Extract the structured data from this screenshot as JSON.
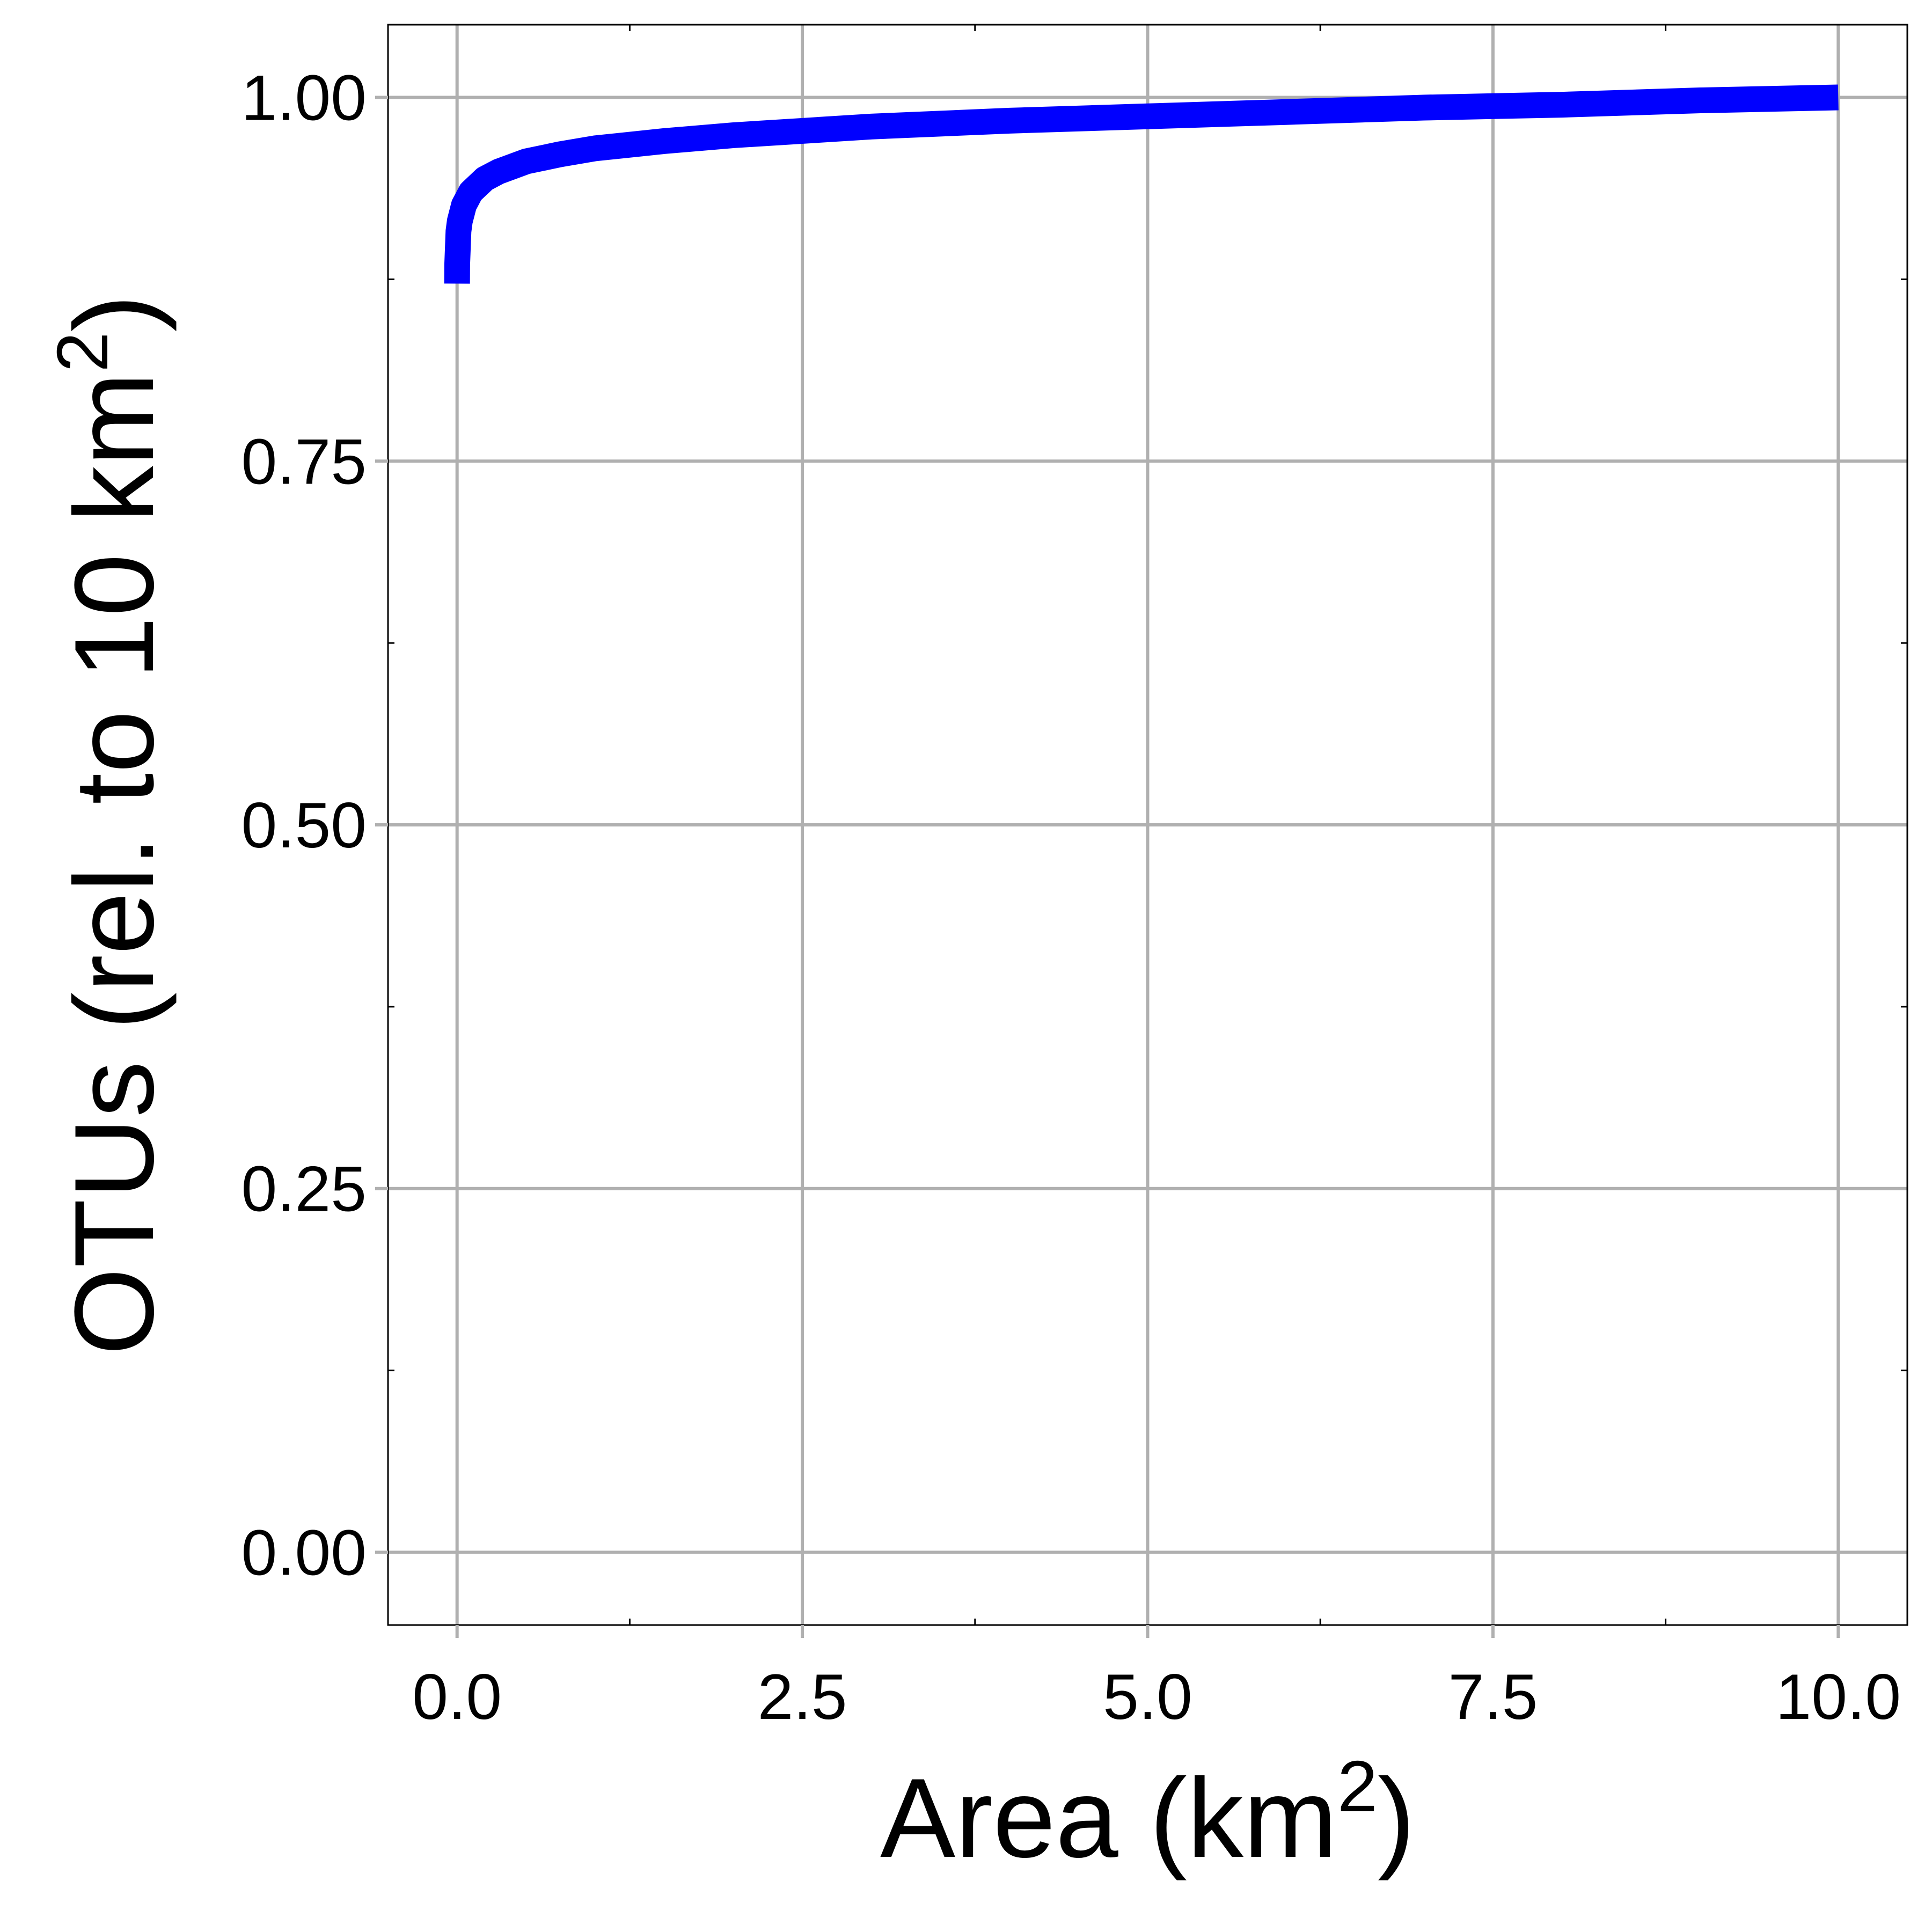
{
  "chart_data": {
    "type": "line",
    "title": "",
    "xlabel": {
      "base": "Area (km",
      "sup": "2",
      "close": ")"
    },
    "ylabel": {
      "base": "OTUs (rel. to 10 km",
      "sup": "2",
      "close": ")"
    },
    "xlim": [
      -0.5,
      10.5
    ],
    "ylim": [
      -0.05,
      1.05
    ],
    "x_ticks": [
      0,
      2.5,
      5,
      7.5,
      10
    ],
    "x_tick_labels": [
      "0.0",
      "2.5",
      "5.0",
      "7.5",
      "10.0"
    ],
    "y_ticks": [
      0,
      0.25,
      0.5,
      0.75,
      1
    ],
    "y_tick_labels": [
      "0.00",
      "0.25",
      "0.50",
      "0.75",
      "1.00"
    ],
    "x_minor": [
      1.25,
      3.75,
      6.25,
      8.75
    ],
    "y_minor": [
      0.125,
      0.375,
      0.625,
      0.875
    ],
    "grid": true,
    "series": [
      {
        "color": "#0000ff",
        "x": [
          0.0001,
          0.001,
          0.01,
          0.02,
          0.05,
          0.1,
          0.2,
          0.3,
          0.5,
          0.75,
          1,
          1.5,
          2,
          2.5,
          3,
          4,
          5,
          6,
          7,
          8,
          9,
          10
        ],
        "y": [
          0.872,
          0.885,
          0.908,
          0.915,
          0.926,
          0.935,
          0.944,
          0.949,
          0.956,
          0.961,
          0.965,
          0.97,
          0.974,
          0.977,
          0.98,
          0.984,
          0.987,
          0.99,
          0.993,
          0.995,
          0.998,
          1.0
        ]
      }
    ]
  },
  "colors": {
    "grid": "#b0b0b0",
    "panel_border": "#000000",
    "line": "#0000ff"
  }
}
